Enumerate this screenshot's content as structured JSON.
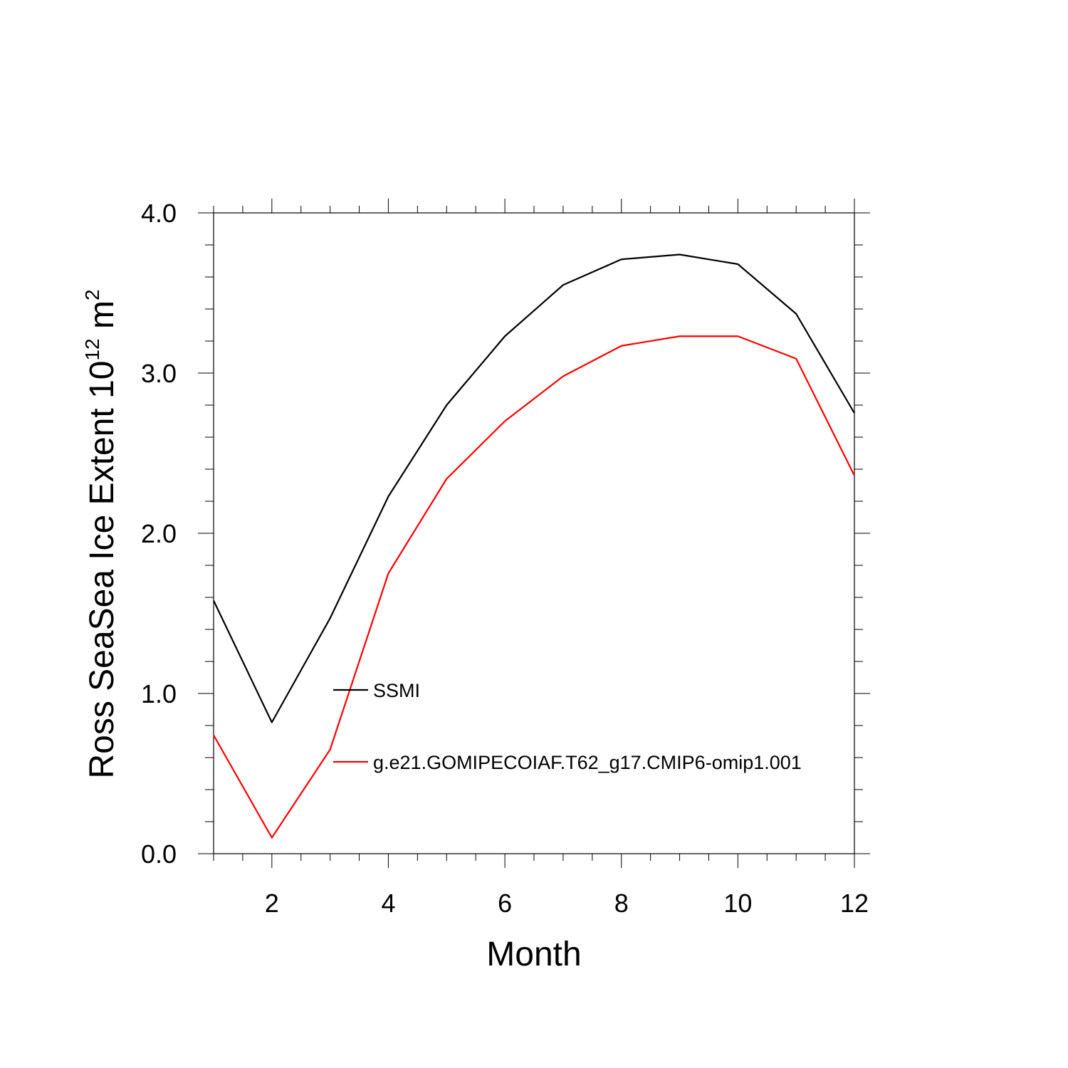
{
  "chart_data": {
    "type": "line",
    "xlabel": "Month",
    "ylabel_main": "Ross SeaSea Ice Extent 10",
    "ylabel_exponent": "12",
    "ylabel_unit": " m",
    "ylabel_unit_exponent": "2",
    "xlim": [
      1,
      12
    ],
    "ylim": [
      0,
      4
    ],
    "xticks": [
      2,
      4,
      6,
      8,
      10,
      12
    ],
    "xtick_labels": [
      "2",
      "4",
      "6",
      "8",
      "10",
      "12"
    ],
    "yticks": [
      0,
      1,
      2,
      3,
      4
    ],
    "ytick_labels": [
      "0.0",
      "1.0",
      "2.0",
      "3.0",
      "4.0"
    ],
    "x": [
      1,
      2,
      3,
      4,
      5,
      6,
      7,
      8,
      9,
      10,
      11,
      12
    ],
    "series": [
      {
        "name": "SSMI",
        "color": "#000000",
        "values": [
          1.58,
          0.82,
          1.47,
          2.23,
          2.8,
          3.23,
          3.55,
          3.71,
          3.74,
          3.68,
          3.37,
          2.75
        ]
      },
      {
        "name": "g.e21.GOMIPECOIAF.T62_g17.CMIP6-omip1.001",
        "color": "#ff0000",
        "values": [
          0.74,
          0.1,
          0.65,
          1.75,
          2.34,
          2.7,
          2.98,
          3.17,
          3.23,
          3.23,
          3.09,
          2.36
        ]
      }
    ],
    "legend_position": "lower-center inside plot",
    "grid": false
  }
}
